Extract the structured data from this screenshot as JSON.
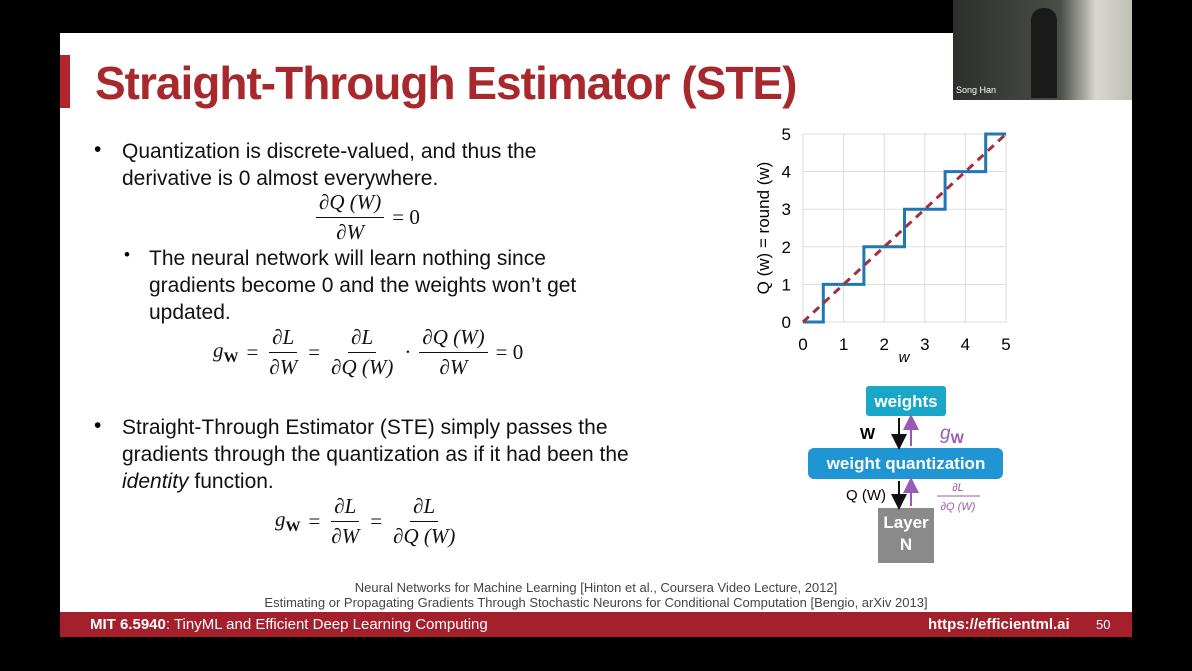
{
  "video": {
    "speaker": "Song Han"
  },
  "slide": {
    "title": "Straight-Through Estimator (STE)",
    "bullet1": "Quantization is discrete-valued, and thus the derivative is 0 almost everywhere.",
    "eq1": {
      "num": "∂Q (W)",
      "den": "∂W",
      "result": "= 0"
    },
    "subbullet": "The neural network will learn nothing since gradients become 0 and the weights won’t get updated.",
    "eq2": {
      "symbol": "g",
      "subscript": "W",
      "equals": "=",
      "frac1": {
        "num": "∂L",
        "den": "∂W"
      },
      "frac2": {
        "num": "∂L",
        "den": "∂Q (W)"
      },
      "dot": "·",
      "frac3": {
        "num": "∂Q (W)",
        "den": "∂W"
      },
      "result": "= 0"
    },
    "bullet2": {
      "before": "Straight-Through Estimator (STE) simply passes the gradients through the quantization as if it had been the ",
      "italic": "identity",
      "after": " function."
    },
    "eq3": {
      "symbol": "g",
      "subscript": "W",
      "equals": "=",
      "frac1": {
        "num": "∂L",
        "den": "∂W"
      },
      "frac2": {
        "num": "∂L",
        "den": "∂Q (W)"
      }
    },
    "citations": [
      "Neural Networks for Machine Learning [Hinton et al., Coursera Video Lecture, 2012]",
      "Estimating or Propagating Gradients Through Stochastic Neurons for Conditional Computation [Bengio, arXiv 2013]"
    ],
    "footer": {
      "course": "MIT 6.5940",
      "course_title": ": TinyML and Efficient Deep Learning Computing",
      "url": "https://efficientml.ai",
      "page": "50"
    }
  },
  "diagram": {
    "nodes": [
      "weights",
      "weight quantization",
      "Layer N"
    ],
    "edge_top_down": "W",
    "edge_top_up": {
      "symbol": "g",
      "subscript": "W"
    },
    "edge_bottom_down": "Q (W)",
    "edge_bottom_up": {
      "num": "∂L",
      "den": "∂Q (W)"
    }
  },
  "chart_data": {
    "type": "line",
    "xlabel": "w",
    "ylabel": "Q (w) = round (w)",
    "xlim": [
      0,
      5
    ],
    "ylim": [
      0,
      5
    ],
    "xticks": [
      0,
      1,
      2,
      3,
      4,
      5
    ],
    "yticks": [
      0,
      1,
      2,
      3,
      4,
      5
    ],
    "grid": true,
    "series": [
      {
        "color": "#1f77b4",
        "x": [
          0,
          0.5,
          0.5,
          1.5,
          1.5,
          2.5,
          2.5,
          3.5,
          3.5,
          4.5,
          4.5,
          5
        ],
        "values": [
          0,
          0,
          1,
          1,
          2,
          2,
          3,
          3,
          4,
          4,
          5,
          5
        ]
      },
      {
        "color": "#a0303a",
        "dashed": true,
        "x": [
          0,
          5
        ],
        "values": [
          0,
          5
        ]
      }
    ]
  }
}
